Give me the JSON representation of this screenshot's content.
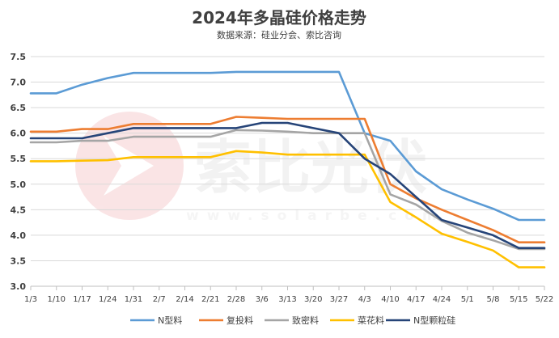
{
  "chart_data": {
    "type": "line",
    "title": "2024年多晶硅价格走势",
    "subtitle": "数据来源：硅业分会、索比咨询",
    "categories": [
      "1/3",
      "1/10",
      "1/17",
      "1/24",
      "1/31",
      "2/7",
      "2/14",
      "2/21",
      "2/28",
      "3/6",
      "3/13",
      "3/20",
      "3/27",
      "4/3",
      "4/10",
      "4/17",
      "4/24",
      "5/1",
      "5/8",
      "5/15",
      "5/22"
    ],
    "ylim": [
      3.0,
      7.5
    ],
    "yticks": [
      "3.0",
      "3.5",
      "4.0",
      "4.5",
      "5.0",
      "5.5",
      "6.0",
      "6.5",
      "7.0",
      "7.5"
    ],
    "grid": "horizontal",
    "legend_position": "bottom",
    "series": [
      {
        "name": "N型料",
        "color": "#5b9bd5",
        "values": [
          6.78,
          6.78,
          6.95,
          7.08,
          7.18,
          7.18,
          7.18,
          7.18,
          7.2,
          7.2,
          7.2,
          7.2,
          7.2,
          6.0,
          5.85,
          5.25,
          4.9,
          4.7,
          4.52,
          4.3,
          4.3
        ]
      },
      {
        "name": "复投料",
        "color": "#ed7d31",
        "values": [
          6.03,
          6.03,
          6.08,
          6.08,
          6.18,
          6.18,
          6.18,
          6.18,
          6.32,
          6.3,
          6.28,
          6.28,
          6.28,
          6.28,
          5.0,
          4.72,
          4.5,
          4.3,
          4.1,
          3.86,
          3.86
        ]
      },
      {
        "name": "致密料",
        "color": "#a5a5a5",
        "values": [
          5.82,
          5.82,
          5.85,
          5.85,
          5.93,
          5.93,
          5.93,
          5.93,
          6.06,
          6.05,
          6.03,
          6.0,
          6.0,
          6.0,
          4.8,
          4.6,
          4.28,
          4.05,
          3.9,
          3.73,
          3.73
        ]
      },
      {
        "name": "菜花料",
        "color": "#ffc000",
        "values": [
          5.45,
          5.45,
          5.46,
          5.47,
          5.53,
          5.53,
          5.53,
          5.53,
          5.65,
          5.62,
          5.58,
          5.58,
          5.58,
          5.58,
          4.65,
          4.35,
          4.03,
          3.87,
          3.7,
          3.37,
          3.37
        ]
      },
      {
        "name": "N型颗粒硅",
        "color": "#264478",
        "values": [
          5.9,
          5.9,
          5.9,
          6.0,
          6.1,
          6.1,
          6.1,
          6.1,
          6.1,
          6.2,
          6.2,
          6.1,
          6.0,
          5.5,
          5.2,
          4.75,
          4.3,
          4.15,
          4.0,
          3.75,
          3.75
        ]
      }
    ]
  },
  "watermark": {
    "brand_text": "索比光伏",
    "url_text": "www.solarbe.com",
    "logo_color": "#e8323c"
  }
}
